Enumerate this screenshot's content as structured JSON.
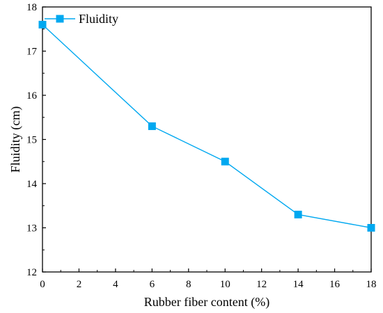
{
  "chart_data": {
    "type": "line",
    "x": [
      0,
      6,
      10,
      14,
      18
    ],
    "series": [
      {
        "name": "Fluidity",
        "values": [
          17.6,
          15.3,
          14.5,
          13.3,
          13.0
        ]
      }
    ],
    "xlabel": "Rubber fiber content (%)",
    "ylabel": "Fluidity (cm)",
    "xlim": [
      0,
      18
    ],
    "ylim": [
      12,
      18
    ],
    "xticks": [
      0,
      2,
      4,
      6,
      8,
      10,
      12,
      14,
      16,
      18
    ],
    "yticks": [
      12,
      13,
      14,
      15,
      16,
      17,
      18
    ],
    "grid": false,
    "legend_position": "top-left",
    "colors": {
      "series": "#00a8f0",
      "axis": "#000000"
    },
    "marker": "square"
  }
}
